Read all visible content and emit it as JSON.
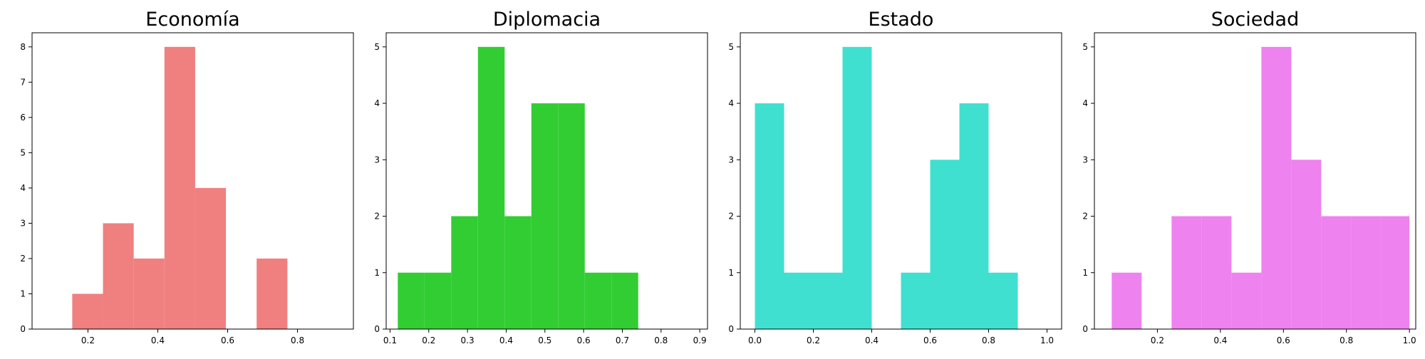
{
  "chart_data": [
    {
      "type": "bar",
      "title": "Economía",
      "color": "#f08080",
      "xlim": [
        0.04,
        0.96
      ],
      "ylim": [
        0,
        8.4
      ],
      "xticks": [
        0.2,
        0.4,
        0.6,
        0.8
      ],
      "xtick_labels": [
        "0.2",
        "0.4",
        "0.6",
        "0.8"
      ],
      "yticks": [
        0,
        1,
        2,
        3,
        4,
        5,
        6,
        7,
        8
      ],
      "ytick_labels": [
        "0",
        "1",
        "2",
        "3",
        "4",
        "5",
        "6",
        "7",
        "8"
      ],
      "bin_edges": [
        0.155,
        0.243,
        0.331,
        0.419,
        0.507,
        0.595,
        0.683,
        0.771
      ],
      "values": [
        1,
        3,
        2,
        8,
        4,
        0,
        2
      ]
    },
    {
      "type": "bar",
      "title": "Diplomacia",
      "color": "#32cd32",
      "xlim": [
        0.09,
        0.92
      ],
      "ylim": [
        0,
        5.25
      ],
      "xticks": [
        0.1,
        0.2,
        0.3,
        0.4,
        0.5,
        0.6,
        0.7,
        0.8,
        0.9
      ],
      "xtick_labels": [
        "0.1",
        "0.2",
        "0.3",
        "0.4",
        "0.5",
        "0.6",
        "0.7",
        "0.8",
        "0.9"
      ],
      "yticks": [
        0,
        1,
        2,
        3,
        4,
        5
      ],
      "ytick_labels": [
        "0",
        "1",
        "2",
        "3",
        "4",
        "5"
      ],
      "bin_edges": [
        0.12,
        0.189,
        0.258,
        0.327,
        0.396,
        0.465,
        0.534,
        0.603,
        0.672,
        0.741
      ],
      "values": [
        1,
        1,
        2,
        5,
        2,
        4,
        4,
        1,
        1
      ]
    },
    {
      "type": "bar",
      "title": "Estado",
      "color": "#40e0d0",
      "xlim": [
        -0.05,
        1.05
      ],
      "ylim": [
        0,
        5.25
      ],
      "xticks": [
        0.0,
        0.2,
        0.4,
        0.6,
        0.8,
        1.0
      ],
      "xtick_labels": [
        "0.0",
        "0.2",
        "0.4",
        "0.6",
        "0.8",
        "1.0"
      ],
      "yticks": [
        0,
        1,
        2,
        3,
        4,
        5
      ],
      "ytick_labels": [
        "0",
        "1",
        "2",
        "3",
        "4",
        "5"
      ],
      "bin_edges": [
        0.0,
        0.1,
        0.2,
        0.3,
        0.4,
        0.5,
        0.6,
        0.7,
        0.8,
        0.9
      ],
      "values": [
        4,
        1,
        1,
        5,
        0,
        1,
        3,
        4,
        1
      ]
    },
    {
      "type": "bar",
      "title": "Sociedad",
      "color": "#ee82ee",
      "xlim": [
        0.0,
        1.02
      ],
      "ylim": [
        0,
        5.25
      ],
      "xticks": [
        0.2,
        0.4,
        0.6,
        0.8,
        1.0
      ],
      "xtick_labels": [
        "0.2",
        "0.4",
        "0.6",
        "0.8",
        "1.0"
      ],
      "yticks": [
        0,
        1,
        2,
        3,
        4,
        5
      ],
      "ytick_labels": [
        "0",
        "1",
        "2",
        "3",
        "4",
        "5"
      ],
      "bin_edges": [
        0.055,
        0.15,
        0.245,
        0.34,
        0.435,
        0.53,
        0.625,
        0.72,
        0.815,
        0.91,
        1.0
      ],
      "values": [
        1,
        0,
        2,
        2,
        1,
        5,
        3,
        2,
        2,
        2
      ]
    }
  ]
}
